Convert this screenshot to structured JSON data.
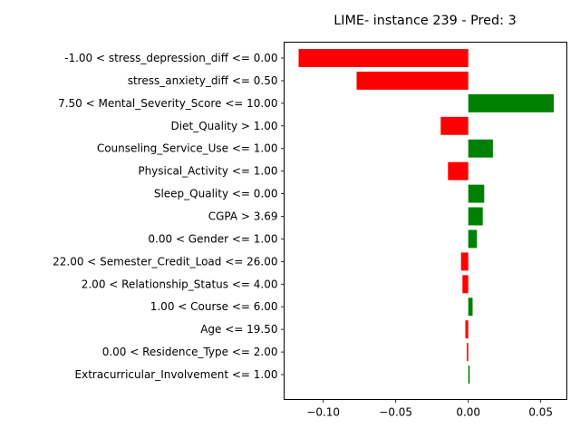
{
  "chart_data": {
    "type": "bar",
    "orientation": "horizontal",
    "title": "LIME- instance 239 - Pred: 3",
    "xlabel": "",
    "ylabel": "",
    "xlim": [
      -0.127,
      0.068
    ],
    "xticks": [
      -0.1,
      -0.05,
      0.0,
      0.05
    ],
    "xtick_labels": [
      "−0.10",
      "−0.05",
      "0.00",
      "0.05"
    ],
    "grid": false,
    "legend": "none",
    "positive_color": "#008000",
    "negative_color": "#ff0000",
    "categories": [
      "-1.00 < stress_depression_diff <= 0.00",
      "stress_anxiety_diff <= 0.50",
      "7.50 < Mental_Severity_Score <= 10.00",
      "Diet_Quality > 1.00",
      "Counseling_Service_Use <= 1.00",
      "Physical_Activity <= 1.00",
      "Sleep_Quality <= 0.00",
      "CGPA > 3.69",
      "0.00 < Gender <= 1.00",
      "22.00 < Semester_Credit_Load <= 26.00",
      "2.00 < Relationship_Status <= 4.00",
      "1.00 < Course <= 6.00",
      "Age <= 19.50",
      "0.00 < Residence_Type <= 2.00",
      "Extracurricular_Involvement <= 1.00"
    ],
    "values": [
      -0.117,
      -0.077,
      0.059,
      -0.019,
      0.017,
      -0.014,
      0.011,
      0.01,
      0.006,
      -0.005,
      -0.004,
      0.003,
      -0.002,
      -0.001,
      0.001
    ]
  }
}
